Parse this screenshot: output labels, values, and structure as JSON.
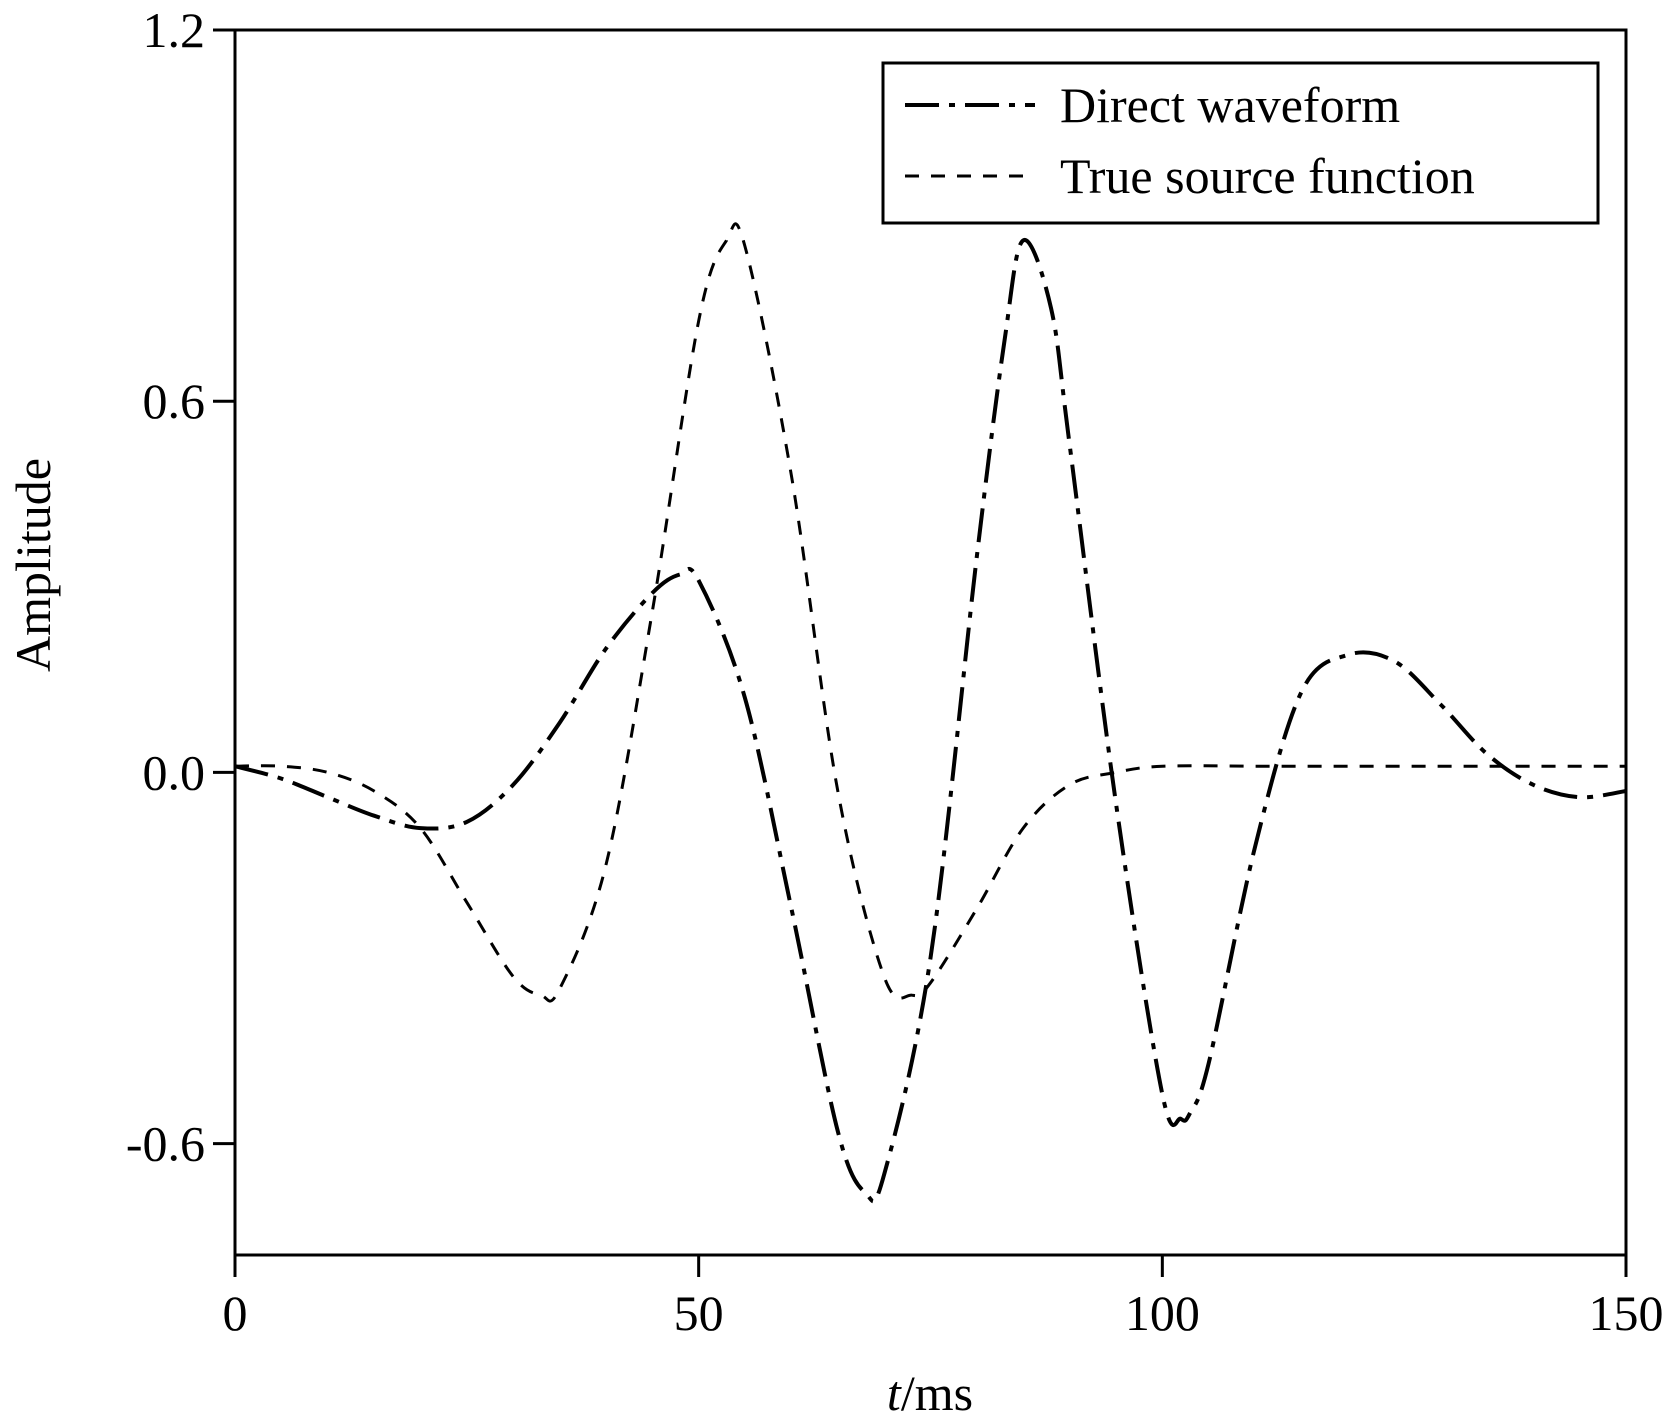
{
  "chart_data": {
    "type": "line",
    "xlabel_italic": "t",
    "xlabel_rest": "/ms",
    "ylabel": "Amplitude",
    "xlim": [
      0,
      150
    ],
    "ylim": [
      -0.78,
      1.2
    ],
    "x_ticks": [
      0,
      50,
      100,
      150
    ],
    "x_tick_labels": [
      "0",
      "50",
      "100",
      "150"
    ],
    "y_ticks": [
      -0.6,
      0.0,
      0.6,
      1.2
    ],
    "y_tick_labels": [
      "-0.6",
      "0.0",
      "0.6",
      "1.2"
    ],
    "grid": false,
    "legend_position": "top-right",
    "series": [
      {
        "name": "Direct waveform",
        "style": "dash-dot",
        "color": "#000000",
        "x": [
          0,
          5,
          10,
          15,
          20,
          25,
          30,
          35,
          40,
          45,
          48,
          50,
          55,
          60,
          65,
          68,
          70,
          75,
          80,
          83,
          85,
          88,
          90,
          95,
          100,
          102,
          103,
          105,
          110,
          115,
          120,
          125,
          130,
          135,
          140,
          145,
          150
        ],
        "y": [
          0.01,
          -0.01,
          -0.04,
          -0.07,
          -0.09,
          -0.08,
          -0.02,
          0.08,
          0.2,
          0.29,
          0.32,
          0.31,
          0.12,
          -0.22,
          -0.58,
          -0.68,
          -0.65,
          -0.3,
          0.35,
          0.7,
          0.86,
          0.75,
          0.53,
          -0.05,
          -0.52,
          -0.56,
          -0.55,
          -0.47,
          -0.12,
          0.13,
          0.19,
          0.18,
          0.11,
          0.03,
          -0.02,
          -0.04,
          -0.03
        ]
      },
      {
        "name": "True source function",
        "style": "dashed",
        "color": "#000000",
        "x": [
          0,
          5,
          10,
          15,
          20,
          25,
          30,
          33,
          35,
          40,
          45,
          50,
          53,
          55,
          60,
          65,
          70,
          73,
          75,
          80,
          85,
          90,
          95,
          100,
          110,
          120,
          130,
          140,
          150
        ],
        "y": [
          0.01,
          0.01,
          0.0,
          -0.03,
          -0.09,
          -0.21,
          -0.33,
          -0.36,
          -0.35,
          -0.15,
          0.26,
          0.73,
          0.86,
          0.85,
          0.48,
          -0.03,
          -0.33,
          -0.36,
          -0.34,
          -0.22,
          -0.09,
          -0.02,
          0.0,
          0.01,
          0.01,
          0.01,
          0.01,
          0.01,
          0.01
        ]
      }
    ]
  }
}
